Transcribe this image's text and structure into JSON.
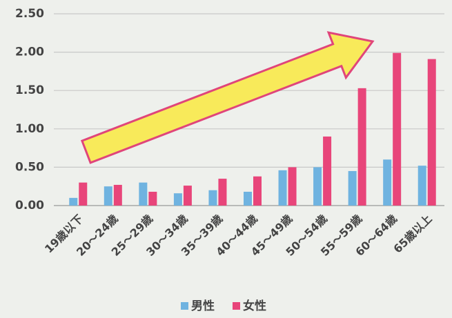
{
  "chart_data": {
    "type": "bar",
    "categories": [
      "19歳以下",
      "20～24歳",
      "25～29歳",
      "30～34歳",
      "35～39歳",
      "40～44歳",
      "45～49歳",
      "50～54歳",
      "55～59歳",
      "60～64歳",
      "65歳以上"
    ],
    "series": [
      {
        "name": "男性",
        "color": "#6fb3e0",
        "values": [
          0.1,
          0.25,
          0.3,
          0.16,
          0.2,
          0.18,
          0.46,
          0.5,
          0.45,
          0.6,
          0.52
        ]
      },
      {
        "name": "女性",
        "color": "#e8457a",
        "values": [
          0.3,
          0.27,
          0.18,
          0.26,
          0.35,
          0.38,
          0.5,
          0.9,
          1.53,
          1.99,
          1.91
        ]
      }
    ],
    "ylim": [
      0,
      2.5
    ],
    "yticks": [
      {
        "value": 0,
        "label": "0.00"
      },
      {
        "value": 0.5,
        "label": "0.50"
      },
      {
        "value": 1,
        "label": "1.00"
      },
      {
        "value": 1.5,
        "label": "1.50"
      },
      {
        "value": 2,
        "label": "2.00"
      },
      {
        "value": 2.5,
        "label": "2.50"
      }
    ],
    "grid": true,
    "legend": "bottom"
  }
}
